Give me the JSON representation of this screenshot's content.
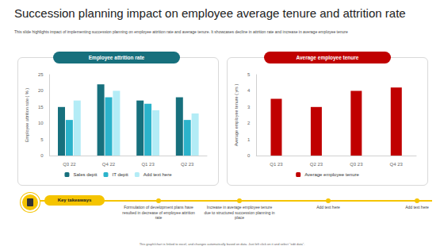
{
  "title": "Succession planning impact on employee average tenure and attrition rate",
  "subtitle": "This slide highlights impact of implementing succession planning on employee attrition rate and average tenure. It showcases decline in attrition rate and increase in average employee tenure",
  "chart_data": [
    {
      "type": "bar",
      "title": "Employee attrition rate",
      "color": "#17707d",
      "y_label": "Employee attrition rate ( % )",
      "categories": [
        "Q3 22",
        "Q4 22",
        "Q1 23",
        "Q2 23"
      ],
      "series": [
        {
          "name": "Sales deptt",
          "color": "#17707d",
          "values": [
            15,
            22,
            17,
            18
          ]
        },
        {
          "name": "IT deptt",
          "color": "#2bb3cb",
          "values": [
            11,
            18,
            16,
            11
          ]
        },
        {
          "name": "Add text here",
          "color": "#b3ecf6",
          "values": [
            17,
            20,
            14,
            13
          ]
        }
      ],
      "ylim": [
        0,
        25
      ],
      "yticks": [
        0,
        5,
        10,
        15,
        20,
        25
      ],
      "grid": false,
      "legend": "bottom"
    },
    {
      "type": "bar",
      "title": "Average employee tenure",
      "color": "#c00000",
      "y_label": "Average employee tenure ( yrs )",
      "categories": [
        "Q1 23",
        "Q2 23",
        "Q3 23",
        "Q4 23"
      ],
      "series": [
        {
          "name": "Average employee tenure",
          "color": "#c00000",
          "values": [
            3.5,
            3.0,
            4.0,
            4.2
          ]
        }
      ],
      "ylim": [
        0,
        5
      ],
      "yticks": [
        0,
        1,
        2,
        3,
        4,
        5
      ],
      "grid": false,
      "legend": "bottom"
    }
  ],
  "key_takeaways": {
    "title": "Key takeaways",
    "items": [
      "Formulation of development plans have resulted in decrease of employee attrition rate",
      "Increase in average employee tenure due to structured succession planning in place",
      "Add text here",
      "Add text here"
    ]
  },
  "footer": "This graph/chart is linked to excel, and changes automatically based on data. Just left click on it and select \"edit data\"."
}
